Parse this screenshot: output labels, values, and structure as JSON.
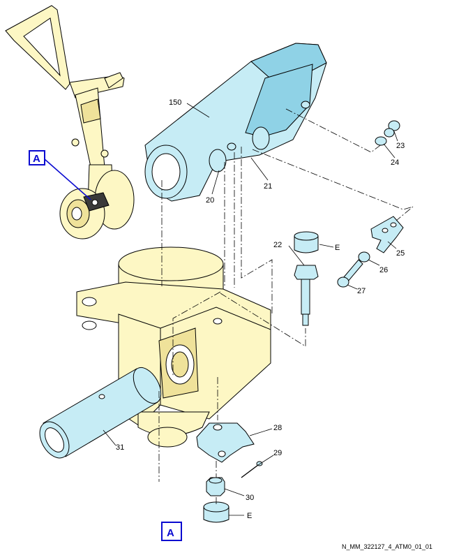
{
  "figure": {
    "view_ref": "A",
    "drawing_code": "N_MM_322127_4_ATM0_01_01"
  },
  "callouts": {
    "c150": "150",
    "c20": "20",
    "c21": "21",
    "c22": "22",
    "c23": "23",
    "c24": "24",
    "c25": "25",
    "c26": "26",
    "c27": "27",
    "c28": "28",
    "c29": "29",
    "c30": "30",
    "c31": "31",
    "e1": "E",
    "e2": "E"
  },
  "colors": {
    "part_blue": "#c6ecf5",
    "housing_yellow": "#fdf7c4",
    "reference_blue": "#0a0ad0"
  }
}
